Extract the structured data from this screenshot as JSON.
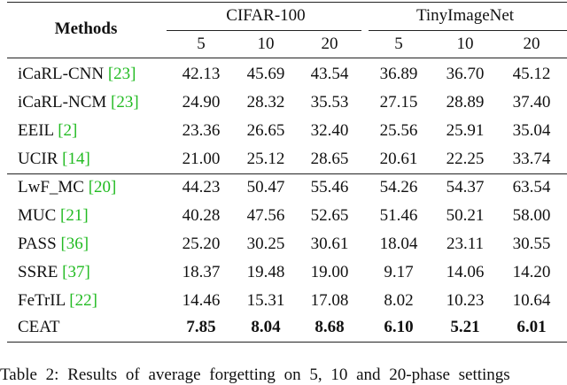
{
  "table": {
    "header": {
      "methods": "Methods",
      "groups": [
        "CIFAR-100",
        "TinyImageNet"
      ],
      "phases": [
        "5",
        "10",
        "20",
        "5",
        "10",
        "20"
      ]
    },
    "rows": [
      {
        "method": "iCaRL-CNN",
        "ref": "[23]",
        "values": [
          "42.13",
          "45.69",
          "43.54",
          "36.89",
          "36.70",
          "45.12"
        ]
      },
      {
        "method": "iCaRL-NCM",
        "ref": "[23]",
        "values": [
          "24.90",
          "28.32",
          "35.53",
          "27.15",
          "28.89",
          "37.40"
        ]
      },
      {
        "method": "EEIL",
        "ref": "[2]",
        "values": [
          "23.36",
          "26.65",
          "32.40",
          "25.56",
          "25.91",
          "35.04"
        ]
      },
      {
        "method": "UCIR",
        "ref": "[14]",
        "values": [
          "21.00",
          "25.12",
          "28.65",
          "20.61",
          "22.25",
          "33.74"
        ]
      },
      {
        "method": "LwF_MC",
        "ref": "[20]",
        "values": [
          "44.23",
          "50.47",
          "55.46",
          "54.26",
          "54.37",
          "63.54"
        ]
      },
      {
        "method": "MUC",
        "ref": "[21]",
        "values": [
          "40.28",
          "47.56",
          "52.65",
          "51.46",
          "50.21",
          "58.00"
        ]
      },
      {
        "method": "PASS",
        "ref": "[36]",
        "values": [
          "25.20",
          "30.25",
          "30.61",
          "18.04",
          "23.11",
          "30.55"
        ]
      },
      {
        "method": "SSRE",
        "ref": "[37]",
        "values": [
          "18.37",
          "19.48",
          "19.00",
          "9.17",
          "14.06",
          "14.20"
        ]
      },
      {
        "method": "FeTrIL",
        "ref": "[22]",
        "values": [
          "14.46",
          "15.31",
          "17.08",
          "8.02",
          "10.23",
          "10.64"
        ]
      },
      {
        "method": "CEAT",
        "values": [
          "7.85",
          "8.04",
          "8.68",
          "6.10",
          "5.21",
          "6.01"
        ],
        "bold": true
      }
    ],
    "caption": "Table 2: Results of average forgetting on 5, 10 and 20-phase settings"
  }
}
